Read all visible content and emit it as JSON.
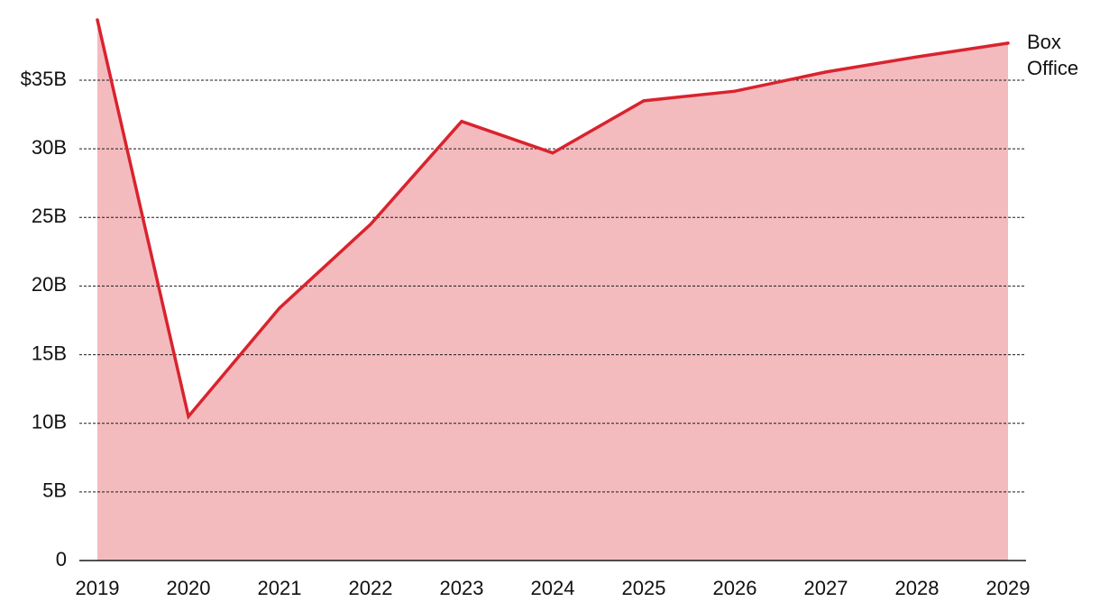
{
  "chart_data": {
    "type": "area",
    "x": [
      2019,
      2020,
      2021,
      2022,
      2023,
      2024,
      2025,
      2026,
      2027,
      2028,
      2029
    ],
    "series": [
      {
        "name": "Box Office",
        "label_lines": [
          "Box",
          "Office"
        ],
        "values": [
          39.4,
          10.5,
          18.4,
          24.5,
          32.0,
          29.7,
          33.5,
          34.2,
          35.6,
          36.7,
          37.7
        ],
        "line_color": "#d9232e",
        "fill_color": "#f4bbbf"
      }
    ],
    "ylim": [
      0,
      40
    ],
    "y_ticks": [
      {
        "value": 0,
        "label": "0"
      },
      {
        "value": 5,
        "label": "5B"
      },
      {
        "value": 10,
        "label": "10B"
      },
      {
        "value": 15,
        "label": "15B"
      },
      {
        "value": 20,
        "label": "20B"
      },
      {
        "value": 25,
        "label": "25B"
      },
      {
        "value": 30,
        "label": "30B"
      },
      {
        "value": 35,
        "label": "$35B"
      }
    ],
    "x_tick_labels": [
      "2019",
      "2020",
      "2021",
      "2022",
      "2023",
      "2024",
      "2025",
      "2026",
      "2027",
      "2028",
      "2029"
    ],
    "grid": "horizontal-dotted",
    "title": "",
    "xlabel": "",
    "ylabel": "",
    "legend": "direct-label-right"
  }
}
